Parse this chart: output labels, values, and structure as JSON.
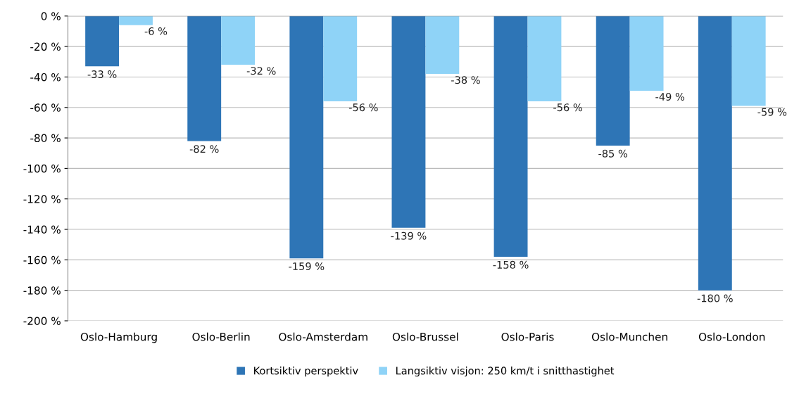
{
  "chart_data": {
    "type": "bar",
    "categories": [
      "Oslo-Hamburg",
      "Oslo-Berlin",
      "Oslo-Amsterdam",
      "Oslo-Brussel",
      "Oslo-Paris",
      "Oslo-Munchen",
      "Oslo-London"
    ],
    "series": [
      {
        "name": "Kortsiktiv perspektiv",
        "color": "#2e75b6",
        "values": [
          -33,
          -82,
          -159,
          -139,
          -158,
          -85,
          -180
        ],
        "value_labels": [
          "-33 %",
          "-82 %",
          "-159 %",
          "-139 %",
          "-158 %",
          "-85 %",
          "-180 %"
        ]
      },
      {
        "name": "Langsiktiv visjon: 250 km/t i snitthastighet",
        "color": "#8fd3f7",
        "values": [
          -6,
          -32,
          -56,
          -38,
          -56,
          -49,
          -59
        ],
        "value_labels": [
          "-6 %",
          "-32 %",
          "-56 %",
          "-38 %",
          "-56 %",
          "-49 %",
          "-59 %"
        ]
      }
    ],
    "ylim": [
      -200,
      0
    ],
    "yticks": [
      {
        "value": 0,
        "label": "0 %"
      },
      {
        "value": -20,
        "label": "-20 %"
      },
      {
        "value": -40,
        "label": "-40 %"
      },
      {
        "value": -60,
        "label": "-60 %"
      },
      {
        "value": -80,
        "label": "-80 %"
      },
      {
        "value": -100,
        "label": "-100 %"
      },
      {
        "value": -120,
        "label": "-120 %"
      },
      {
        "value": -140,
        "label": "-140 %"
      },
      {
        "value": -160,
        "label": "-160 %"
      },
      {
        "value": -180,
        "label": "-180 %"
      },
      {
        "value": -200,
        "label": "-200 %"
      }
    ],
    "grid": "y",
    "legend": "bottom"
  }
}
